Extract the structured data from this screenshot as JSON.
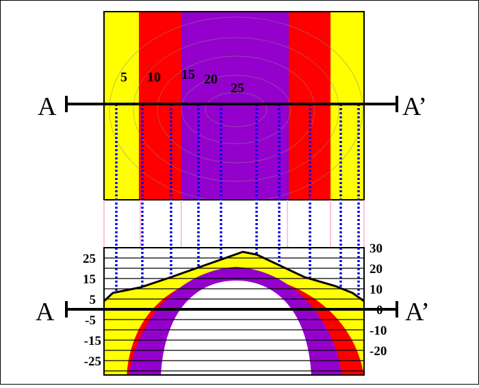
{
  "map": {
    "contour_labels": [
      5,
      10,
      15,
      20,
      25
    ]
  },
  "section": {
    "left_scale": [
      25,
      15,
      5,
      -5,
      -15,
      -25
    ],
    "right_scale": [
      30,
      20,
      10,
      0,
      -10,
      -20
    ]
  },
  "profile": {
    "map_start": "A",
    "map_end": "A’",
    "section_start": "A",
    "section_end": "A’"
  }
}
